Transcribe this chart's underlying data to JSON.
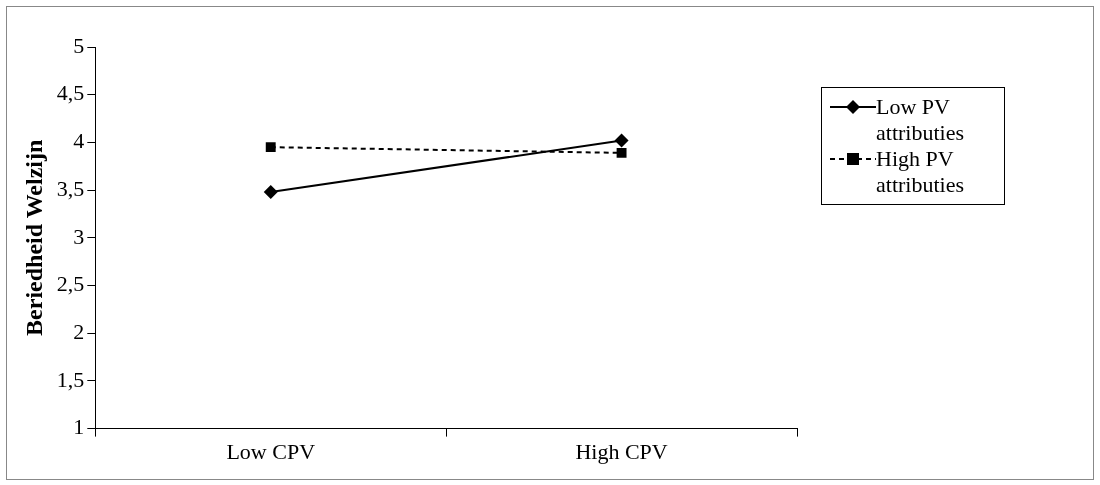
{
  "chart_data": {
    "type": "line",
    "ylabel": "Beriedheid Welzijn",
    "categories": [
      "Low CPV",
      "High CPV"
    ],
    "series": [
      {
        "name": "Low PV attributies",
        "color": "#000000",
        "values": [
          3.48,
          4.02
        ],
        "marker": "diamond",
        "line_style": "solid"
      },
      {
        "name": "High PV attributies",
        "color": "#000000",
        "values": [
          3.95,
          3.89
        ],
        "marker": "square",
        "line_style": "dashed"
      }
    ],
    "ylim": [
      1,
      5
    ],
    "yticks": [
      1,
      {
        "value": 1.5,
        "label": "1,5"
      },
      2,
      {
        "value": 2.5,
        "label": "2,5"
      },
      3,
      {
        "value": 3.5,
        "label": "3,5"
      },
      4,
      {
        "value": 4.5,
        "label": "4,5"
      },
      5
    ],
    "grid": false,
    "legend": "right"
  }
}
